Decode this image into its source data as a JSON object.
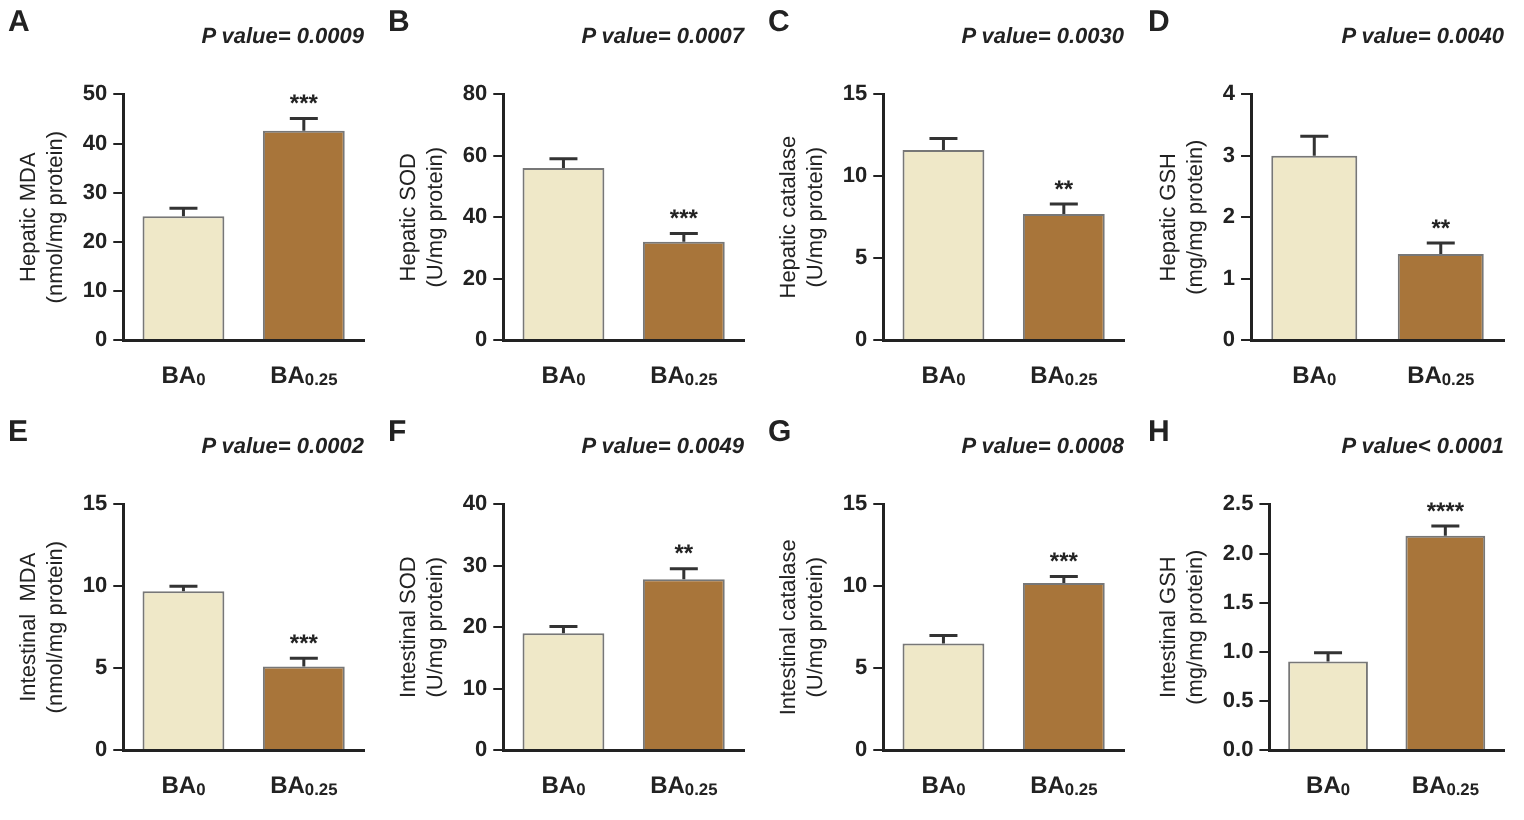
{
  "chart_data": [
    {
      "type": "bar",
      "title": "P value= 0.0009",
      "ylabel": "Hepatic MDA\n(nmol/mg protein)",
      "categories": [
        "BA$_{0}$",
        "BA$_{0.25}$"
      ],
      "values": [
        25.2,
        42.6
      ],
      "errors": [
        1.6,
        2.5
      ],
      "colors": [
        "#efe8c8",
        "#a8753a"
      ],
      "ylim": [
        0,
        50
      ],
      "yticks": [
        0,
        10,
        20,
        30,
        40,
        50
      ],
      "grid": false,
      "legend": false,
      "annotations": [
        "A",
        {
          "text": "***",
          "x": "BA$_{0.25}$",
          "y": 45.1
        }
      ]
    },
    {
      "type": "bar",
      "title": "P value= 0.0007",
      "ylabel": "Hepatic SOD\n(U/mg protein)",
      "categories": [
        "BA$_{0}$",
        "BA$_{0.25}$"
      ],
      "values": [
        56,
        32
      ],
      "errors": [
        3,
        2.7
      ],
      "colors": [
        "#efe8c8",
        "#a8753a"
      ],
      "ylim": [
        0,
        80
      ],
      "yticks": [
        0,
        20,
        40,
        60,
        80
      ],
      "grid": false,
      "legend": false,
      "annotations": [
        "B",
        {
          "text": "***",
          "x": "BA$_{0.25}$",
          "y": 34.7
        }
      ]
    },
    {
      "type": "bar",
      "title": "P value= 0.0030",
      "ylabel": "Hepatic catalase\n(U/mg protein)",
      "categories": [
        "BA$_{0}$",
        "BA$_{0.25}$"
      ],
      "values": [
        11.6,
        7.7
      ],
      "errors": [
        0.7,
        0.6
      ],
      "colors": [
        "#efe8c8",
        "#a8753a"
      ],
      "ylim": [
        0,
        15
      ],
      "yticks": [
        0,
        5,
        10,
        15
      ],
      "grid": false,
      "legend": false,
      "annotations": [
        "C",
        {
          "text": "**",
          "x": "BA$_{0.25}$",
          "y": 8.3
        }
      ]
    },
    {
      "type": "bar",
      "title": "P value= 0.0040",
      "ylabel": "Hepatic GSH\n(mg/mg protein)",
      "categories": [
        "BA$_{0}$",
        "BA$_{0.25}$"
      ],
      "values": [
        3.0,
        1.4
      ],
      "errors": [
        0.32,
        0.18
      ],
      "colors": [
        "#efe8c8",
        "#a8753a"
      ],
      "ylim": [
        0,
        4
      ],
      "yticks": [
        0,
        1,
        2,
        3,
        4
      ],
      "grid": false,
      "legend": false,
      "annotations": [
        "D",
        {
          "text": "**",
          "x": "BA$_{0.25}$",
          "y": 1.58
        }
      ]
    },
    {
      "type": "bar",
      "title": "P value= 0.0002",
      "ylabel": "Intestinal  MDA\n(nmol/mg protein)",
      "categories": [
        "BA$_{0}$",
        "BA$_{0.25}$"
      ],
      "values": [
        9.7,
        5.1
      ],
      "errors": [
        0.3,
        0.5
      ],
      "colors": [
        "#efe8c8",
        "#a8753a"
      ],
      "ylim": [
        0,
        15
      ],
      "yticks": [
        0,
        5,
        10,
        15
      ],
      "grid": false,
      "legend": false,
      "annotations": [
        "E",
        {
          "text": "***",
          "x": "BA$_{0.25}$",
          "y": 5.6
        }
      ]
    },
    {
      "type": "bar",
      "title": "P value= 0.0049",
      "ylabel": "Intestinal SOD\n(U/mg protein)",
      "categories": [
        "BA$_{0}$",
        "BA$_{0.25}$"
      ],
      "values": [
        19,
        27.8
      ],
      "errors": [
        1.1,
        1.7
      ],
      "colors": [
        "#efe8c8",
        "#a8753a"
      ],
      "ylim": [
        0,
        40
      ],
      "yticks": [
        0,
        10,
        20,
        30,
        40
      ],
      "grid": false,
      "legend": false,
      "annotations": [
        "F",
        {
          "text": "**",
          "x": "BA$_{0.25}$",
          "y": 29.5
        }
      ]
    },
    {
      "type": "bar",
      "title": "P value= 0.0008",
      "ylabel": "Intestinal catalase\n(U/mg protein)",
      "categories": [
        "BA$_{0}$",
        "BA$_{0.25}$"
      ],
      "values": [
        6.5,
        10.2
      ],
      "errors": [
        0.5,
        0.4
      ],
      "colors": [
        "#efe8c8",
        "#a8753a"
      ],
      "ylim": [
        0,
        15
      ],
      "yticks": [
        0,
        5,
        10,
        15
      ],
      "grid": false,
      "legend": false,
      "annotations": [
        "G",
        {
          "text": "***",
          "x": "BA$_{0.25}$",
          "y": 10.6
        }
      ]
    },
    {
      "type": "bar",
      "title": "P value< 0.0001",
      "ylabel": "Intestinal GSH\n(mg/mg protein)",
      "categories": [
        "BA$_{0}$",
        "BA$_{0.25}$"
      ],
      "values": [
        0.9,
        2.18
      ],
      "errors": [
        0.09,
        0.1
      ],
      "colors": [
        "#efe8c8",
        "#a8753a"
      ],
      "ylim": [
        0,
        2.5
      ],
      "yticks": [
        {
          "value": 0,
          "label": "0.0"
        },
        {
          "value": 0.5,
          "label": "0.5"
        },
        {
          "value": 1,
          "label": "1.0"
        },
        {
          "value": 1.5,
          "label": "1.5"
        },
        {
          "value": 2,
          "label": "2.0"
        },
        {
          "value": 2.5,
          "label": "2.5"
        }
      ],
      "grid": false,
      "legend": false,
      "annotations": [
        "H",
        {
          "text": "****",
          "x": "BA$_{0.25}$",
          "y": 2.28
        }
      ]
    }
  ]
}
